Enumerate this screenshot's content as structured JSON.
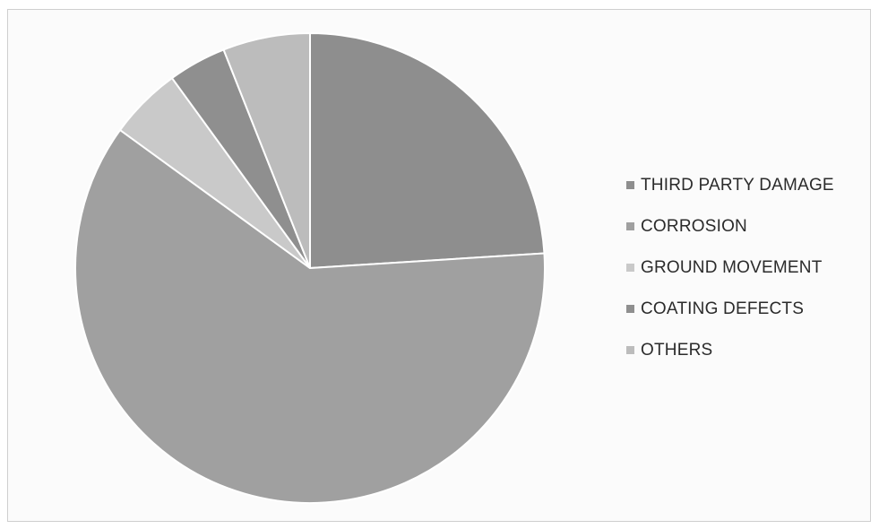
{
  "chart_data": {
    "type": "pie",
    "title": "",
    "categories": [
      "THIRD PARTY DAMAGE",
      "CORROSION",
      "GROUND MOVEMENT",
      "COATING DEFECTS",
      "OTHERS"
    ],
    "values": [
      24,
      61,
      5,
      4,
      6
    ],
    "unit": "percent (estimated)",
    "slice_order_note": "clockwise from 12 o'clock: THIRD PARTY DAMAGE, CORROSION, GROUND MOVEMENT, COATING DEFECTS, OTHERS",
    "colors": [
      "#8e8e8e",
      "#a0a0a0",
      "#c9c9c9",
      "#8f8f8f",
      "#bcbcbc"
    ],
    "legend_placement": "right"
  }
}
